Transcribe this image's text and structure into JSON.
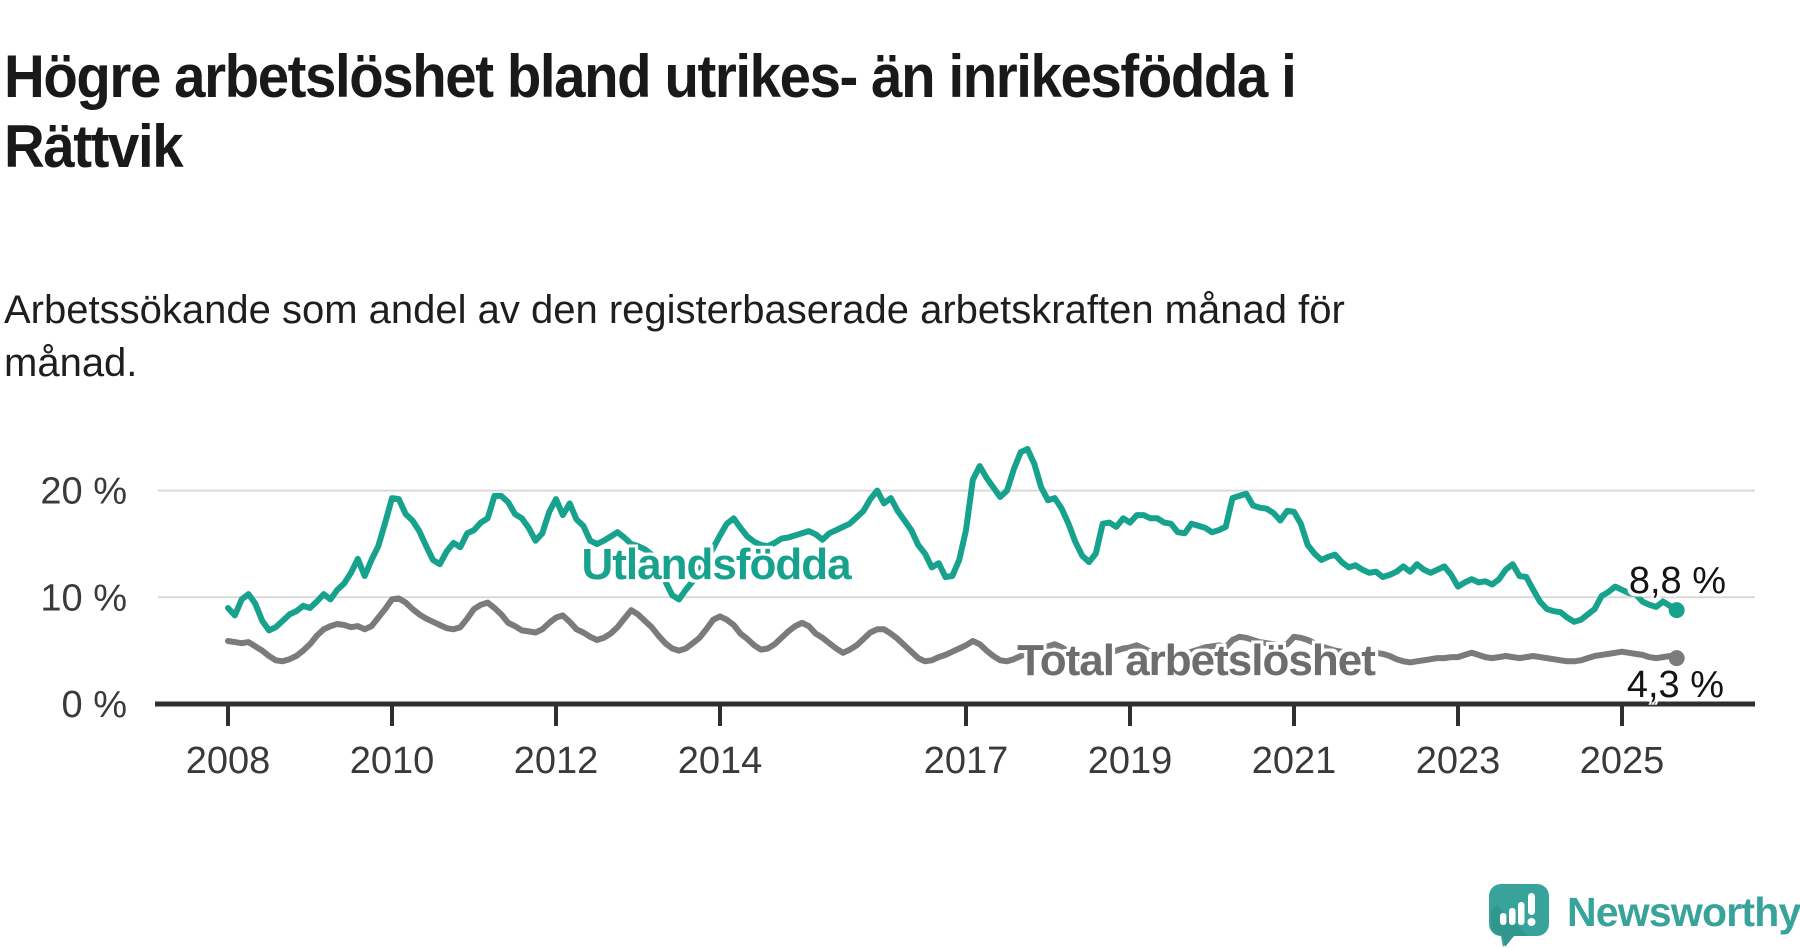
{
  "header": {
    "title": "Högre arbetslöshet bland utrikes- än inrikesfödda i\nRättvik",
    "subtitle": "Arbetssökande som andel av den registerbaserade arbetskraften månad för\nmånad."
  },
  "chart": {
    "series_labels": {
      "foreign": "Utlandsfödda",
      "total": "Total arbetslöshet"
    },
    "end_labels": {
      "foreign": "8,8 %",
      "total": "4,3 %"
    },
    "colors": {
      "foreign": "#17a28e",
      "total": "#7b7b7b",
      "grid": "#d9d9d9",
      "axis": "#2f2f2f",
      "tick_text": "#3a3a3a",
      "end_label_text": "#141414",
      "logo_teal": "#38a39a"
    }
  },
  "chart_data": {
    "type": "line",
    "title": "Högre arbetslöshet bland utrikes- än inrikesfödda i Rättvik",
    "subtitle": "Arbetssökande som andel av den registerbaserade arbetskraften månad för månad.",
    "x_start_year": 2008,
    "x_step_months": 1,
    "x_axis_ticks": [
      {
        "year": 2008,
        "label": "2008"
      },
      {
        "year": 2010,
        "label": "2010"
      },
      {
        "year": 2012,
        "label": "2012"
      },
      {
        "year": 2014,
        "label": "2014"
      },
      {
        "year": 2017,
        "label": "2017"
      },
      {
        "year": 2019,
        "label": "2019"
      },
      {
        "year": 2021,
        "label": "2021"
      },
      {
        "year": 2023,
        "label": "2023"
      },
      {
        "year": 2025,
        "label": "2025"
      }
    ],
    "y_axis_ticks": [
      {
        "value": 0,
        "label": "0 %"
      },
      {
        "value": 10,
        "label": "10 %"
      },
      {
        "value": 20,
        "label": "20 %"
      }
    ],
    "ylim": [
      0,
      25
    ],
    "grid": true,
    "series": [
      {
        "name": "Utlandsfödda",
        "color": "#17a28e",
        "last_value_label": "8,8 %",
        "values": [
          9.0,
          8.3,
          9.8,
          10.3,
          9.4,
          7.8,
          6.9,
          7.2,
          7.8,
          8.4,
          8.7,
          9.2,
          9.0,
          9.6,
          10.3,
          9.8,
          10.7,
          11.3,
          12.3,
          13.6,
          12.0,
          13.5,
          14.8,
          17.0,
          19.3,
          19.2,
          17.8,
          17.2,
          16.2,
          14.8,
          13.5,
          13.1,
          14.3,
          15.1,
          14.7,
          16.0,
          16.3,
          17.0,
          17.4,
          19.5,
          19.5,
          18.9,
          17.8,
          17.4,
          16.5,
          15.3,
          16.0,
          18.0,
          19.2,
          17.7,
          18.8,
          17.3,
          16.7,
          15.3,
          15.0,
          15.3,
          15.7,
          16.1,
          15.6,
          15.0,
          14.8,
          14.5,
          14.0,
          13.0,
          11.5,
          10.2,
          9.8,
          10.7,
          11.5,
          12.6,
          13.6,
          14.6,
          15.8,
          16.9,
          17.4,
          16.5,
          15.7,
          15.2,
          14.9,
          14.8,
          15.1,
          15.5,
          15.6,
          15.8,
          16.0,
          16.2,
          15.9,
          15.4,
          16.0,
          16.3,
          16.6,
          16.9,
          17.5,
          18.1,
          19.2,
          20.0,
          18.8,
          19.3,
          18.1,
          17.2,
          16.3,
          14.9,
          14.1,
          12.8,
          13.2,
          11.9,
          12.0,
          13.5,
          16.3,
          21.0,
          22.3,
          21.2,
          20.3,
          19.4,
          20.0,
          22.0,
          23.6,
          23.9,
          22.5,
          20.3,
          19.1,
          19.3,
          18.3,
          16.9,
          15.2,
          13.9,
          13.3,
          14.1,
          16.9,
          17.0,
          16.6,
          17.4,
          17.0,
          17.7,
          17.7,
          17.4,
          17.4,
          17.0,
          16.9,
          16.1,
          16.0,
          16.9,
          16.7,
          16.5,
          16.1,
          16.3,
          16.6,
          19.3,
          19.5,
          19.7,
          18.6,
          18.4,
          18.3,
          17.9,
          17.2,
          18.1,
          18.0,
          16.9,
          14.9,
          14.1,
          13.5,
          13.8,
          14.0,
          13.3,
          12.8,
          13.0,
          12.6,
          12.3,
          12.4,
          11.9,
          12.1,
          12.4,
          12.9,
          12.4,
          13.1,
          12.6,
          12.3,
          12.6,
          12.9,
          12.1,
          11.0,
          11.4,
          11.7,
          11.4,
          11.5,
          11.2,
          11.7,
          12.6,
          13.1,
          12.0,
          11.9,
          10.7,
          9.6,
          8.9,
          8.7,
          8.6,
          8.1,
          7.7,
          7.9,
          8.4,
          8.9,
          10.1,
          10.5,
          11.0,
          10.7,
          10.4,
          10.3,
          9.6,
          9.3,
          9.1,
          9.6,
          9.2,
          8.8
        ]
      },
      {
        "name": "Total arbetslöshet",
        "color": "#7b7b7b",
        "last_value_label": "4,3 %",
        "values": [
          5.9,
          5.8,
          5.7,
          5.8,
          5.4,
          5.0,
          4.5,
          4.1,
          4.0,
          4.2,
          4.5,
          5.0,
          5.6,
          6.4,
          7.0,
          7.3,
          7.5,
          7.4,
          7.2,
          7.3,
          7.0,
          7.3,
          8.1,
          8.9,
          9.8,
          9.9,
          9.5,
          8.9,
          8.4,
          8.0,
          7.7,
          7.4,
          7.1,
          7.0,
          7.2,
          8.0,
          8.9,
          9.3,
          9.5,
          9.0,
          8.4,
          7.6,
          7.3,
          6.9,
          6.8,
          6.7,
          7.0,
          7.6,
          8.1,
          8.3,
          7.7,
          7.0,
          6.7,
          6.3,
          6.0,
          6.2,
          6.6,
          7.2,
          8.0,
          8.8,
          8.4,
          7.8,
          7.2,
          6.4,
          5.7,
          5.2,
          5.0,
          5.2,
          5.7,
          6.2,
          7.0,
          7.9,
          8.2,
          7.9,
          7.4,
          6.6,
          6.1,
          5.5,
          5.1,
          5.2,
          5.6,
          6.2,
          6.8,
          7.3,
          7.6,
          7.3,
          6.6,
          6.2,
          5.7,
          5.2,
          4.8,
          5.1,
          5.5,
          6.1,
          6.7,
          7.0,
          7.0,
          6.6,
          6.1,
          5.5,
          4.9,
          4.3,
          4.0,
          4.1,
          4.4,
          4.6,
          4.9,
          5.2,
          5.5,
          5.9,
          5.6,
          5.0,
          4.5,
          4.1,
          4.0,
          4.2,
          4.5,
          4.7,
          5.0,
          5.2,
          5.4,
          5.6,
          5.3,
          4.9,
          4.5,
          4.2,
          4.1,
          4.3,
          4.6,
          4.8,
          5.0,
          5.2,
          5.3,
          5.5,
          5.2,
          4.9,
          4.6,
          4.4,
          4.3,
          4.5,
          4.7,
          4.9,
          5.1,
          5.3,
          5.4,
          5.5,
          5.3,
          6.0,
          6.3,
          6.2,
          6.0,
          5.8,
          5.7,
          5.6,
          5.5,
          5.6,
          6.3,
          6.2,
          6.0,
          5.7,
          5.4,
          5.2,
          5.0,
          4.9,
          4.8,
          4.7,
          4.6,
          4.6,
          4.8,
          4.7,
          4.5,
          4.2,
          4.0,
          3.9,
          4.0,
          4.1,
          4.2,
          4.3,
          4.3,
          4.4,
          4.4,
          4.6,
          4.8,
          4.6,
          4.4,
          4.3,
          4.4,
          4.5,
          4.4,
          4.3,
          4.4,
          4.5,
          4.4,
          4.3,
          4.2,
          4.1,
          4.0,
          4.0,
          4.1,
          4.3,
          4.5,
          4.6,
          4.7,
          4.8,
          4.9,
          4.8,
          4.7,
          4.6,
          4.4,
          4.3,
          4.4,
          4.5,
          4.3
        ]
      }
    ],
    "legend_position": "inline-labels"
  },
  "footer": {
    "brand": "Newsworthy"
  }
}
